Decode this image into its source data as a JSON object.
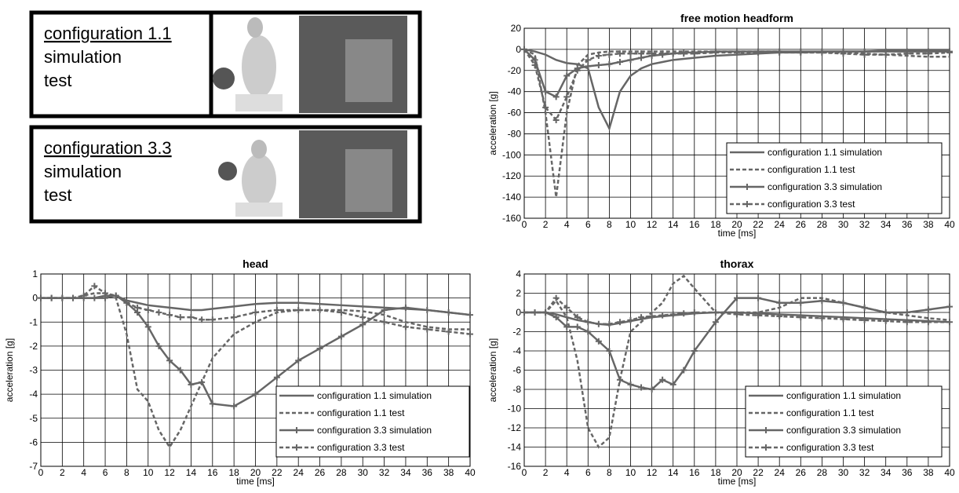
{
  "panels": [
    {
      "title": "configuration 1.1",
      "lines": [
        "simulation",
        "test"
      ]
    },
    {
      "title": "configuration 3.3",
      "lines": [
        "simulation",
        "test"
      ]
    }
  ],
  "chart_data": [
    {
      "type": "line",
      "title": "free motion headform",
      "x_label": "time [ms]",
      "y_label": "acceleration [g]",
      "x": [
        0,
        1,
        2,
        3,
        4,
        5,
        6,
        7,
        8,
        9,
        10,
        11,
        12,
        13,
        14,
        15,
        16,
        18,
        20,
        22,
        24,
        26,
        28,
        30,
        32,
        34,
        36,
        38,
        40
      ],
      "xlim": [
        0,
        40
      ],
      "xticks": [
        0,
        2,
        4,
        6,
        8,
        10,
        12,
        14,
        16,
        18,
        20,
        22,
        24,
        26,
        28,
        30,
        32,
        34,
        36,
        38,
        40
      ],
      "ylim": [
        -160,
        20
      ],
      "yticks": [
        -160,
        -140,
        -120,
        -100,
        -80,
        -60,
        -40,
        -20,
        0,
        20
      ],
      "grid": true,
      "legend": "lower right",
      "series": [
        {
          "name": "configuration 1.1 simulation",
          "color": "#666666",
          "linestyle": "solid",
          "marker": "none",
          "values": [
            0,
            -2,
            -5,
            -10,
            -13,
            -14,
            -18,
            -55,
            -75,
            -40,
            -25,
            -18,
            -14,
            -12,
            -10,
            -9,
            -8,
            -6,
            -5,
            -4,
            -3,
            -3,
            -2,
            -2,
            -2,
            -1,
            -1,
            -1,
            -1
          ]
        },
        {
          "name": "configuration 1.1 test",
          "color": "#666666",
          "linestyle": "dashed",
          "marker": "none",
          "values": [
            0,
            -5,
            -60,
            -140,
            -60,
            -15,
            -5,
            -3,
            -2,
            -2,
            -2,
            -2,
            -2,
            -2,
            -2,
            -2,
            -2,
            -2,
            -2,
            -2,
            -2,
            -3,
            -3,
            -3,
            -4,
            -5,
            -6,
            -7,
            -7
          ]
        },
        {
          "name": "configuration 3.3 simulation",
          "color": "#666666",
          "linestyle": "solid",
          "marker": "+",
          "values": [
            0,
            -10,
            -40,
            -45,
            -25,
            -18,
            -16,
            -15,
            -14,
            -12,
            -10,
            -8,
            -6,
            -5,
            -4,
            -3,
            -3,
            -2,
            -2,
            -2,
            -2,
            -2,
            -2,
            -2,
            -2,
            -2,
            -2,
            -2,
            -2
          ]
        },
        {
          "name": "configuration 3.3 test",
          "color": "#666666",
          "linestyle": "dashed",
          "marker": "+",
          "values": [
            0,
            -15,
            -55,
            -67,
            -45,
            -20,
            -10,
            -6,
            -5,
            -4,
            -4,
            -4,
            -4,
            -4,
            -4,
            -4,
            -4,
            -3,
            -3,
            -3,
            -3,
            -3,
            -3,
            -4,
            -5,
            -5,
            -4,
            -4,
            -3
          ]
        }
      ]
    },
    {
      "type": "line",
      "title": "head",
      "x_label": "time [ms]",
      "y_label": "acceleration [g]",
      "x": [
        0,
        1,
        2,
        3,
        4,
        5,
        6,
        7,
        8,
        9,
        10,
        11,
        12,
        13,
        14,
        15,
        16,
        18,
        20,
        22,
        24,
        26,
        28,
        30,
        32,
        34,
        36,
        38,
        40
      ],
      "xlim": [
        0,
        40
      ],
      "xticks": [
        0,
        2,
        4,
        6,
        8,
        10,
        12,
        14,
        16,
        18,
        20,
        22,
        24,
        26,
        28,
        30,
        32,
        34,
        36,
        38,
        40
      ],
      "ylim": [
        -7,
        1
      ],
      "yticks": [
        -7,
        -6,
        -5,
        -4,
        -3,
        -2,
        -1,
        0,
        1
      ],
      "grid": true,
      "legend": "lower right",
      "series": [
        {
          "name": "configuration 1.1 simulation",
          "color": "#666666",
          "linestyle": "solid",
          "marker": "none",
          "values": [
            0,
            0,
            0,
            0,
            0,
            0,
            0.1,
            0.1,
            -0.1,
            -0.2,
            -0.3,
            -0.35,
            -0.4,
            -0.45,
            -0.5,
            -0.5,
            -0.45,
            -0.35,
            -0.25,
            -0.2,
            -0.2,
            -0.25,
            -0.3,
            -0.35,
            -0.4,
            -0.45,
            -0.5,
            -0.6,
            -0.7
          ]
        },
        {
          "name": "configuration 1.1 test",
          "color": "#666666",
          "linestyle": "dashed",
          "marker": "none",
          "values": [
            0,
            0,
            0,
            0,
            0.1,
            0.2,
            0.2,
            0,
            -1.5,
            -3.8,
            -4.3,
            -5.5,
            -6.2,
            -5.5,
            -4.5,
            -3.5,
            -2.5,
            -1.5,
            -1,
            -0.6,
            -0.5,
            -0.5,
            -0.5,
            -0.55,
            -0.7,
            -1,
            -1.2,
            -1.3,
            -1.3
          ]
        },
        {
          "name": "configuration 3.3 simulation",
          "color": "#666666",
          "linestyle": "solid",
          "marker": "+",
          "values": [
            0,
            0,
            0,
            0,
            0,
            0,
            0,
            0.1,
            -0.2,
            -0.6,
            -1.2,
            -2,
            -2.6,
            -3,
            -3.6,
            -3.5,
            -4.4,
            -4.5,
            -4,
            -3.3,
            -2.6,
            -2.1,
            -1.6,
            -1.1,
            -0.5,
            -0.4,
            -0.5,
            -0.6,
            -0.7
          ]
        },
        {
          "name": "configuration 3.3 test",
          "color": "#666666",
          "linestyle": "dashed",
          "marker": "+",
          "values": [
            0,
            0,
            0,
            0,
            0.1,
            0.5,
            0.2,
            0.1,
            -0.2,
            -0.4,
            -0.5,
            -0.6,
            -0.7,
            -0.8,
            -0.8,
            -0.9,
            -0.9,
            -0.8,
            -0.6,
            -0.5,
            -0.5,
            -0.5,
            -0.6,
            -0.8,
            -1,
            -1.2,
            -1.3,
            -1.4,
            -1.5
          ]
        }
      ]
    },
    {
      "type": "line",
      "title": "thorax",
      "x_label": "time [ms]",
      "y_label": "acceleration [g]",
      "x": [
        0,
        1,
        2,
        3,
        4,
        5,
        6,
        7,
        8,
        9,
        10,
        11,
        12,
        13,
        14,
        15,
        16,
        18,
        20,
        22,
        24,
        26,
        28,
        30,
        32,
        34,
        36,
        38,
        40
      ],
      "xlim": [
        0,
        40
      ],
      "xticks": [
        0,
        2,
        4,
        6,
        8,
        10,
        12,
        14,
        16,
        18,
        20,
        22,
        24,
        26,
        28,
        30,
        32,
        34,
        36,
        38,
        40
      ],
      "ylim": [
        -16,
        4
      ],
      "yticks": [
        -16,
        -14,
        -12,
        -10,
        -8,
        -6,
        -4,
        -2,
        0,
        2,
        4
      ],
      "grid": true,
      "legend": "lower right",
      "series": [
        {
          "name": "configuration 1.1 simulation",
          "color": "#666666",
          "linestyle": "solid",
          "marker": "none",
          "values": [
            0,
            0,
            0,
            -0.2,
            -0.5,
            -0.8,
            -1,
            -1.2,
            -1.3,
            -1.1,
            -0.9,
            -0.7,
            -0.5,
            -0.4,
            -0.3,
            -0.2,
            -0.1,
            0,
            0,
            -0.1,
            -0.2,
            -0.3,
            -0.4,
            -0.5,
            -0.6,
            -0.7,
            -0.8,
            -0.9,
            -1
          ]
        },
        {
          "name": "configuration 1.1 test",
          "color": "#666666",
          "linestyle": "dashed",
          "marker": "none",
          "values": [
            0,
            0,
            0,
            1.2,
            -0.5,
            -5,
            -12,
            -14,
            -13,
            -7,
            -2,
            -1,
            0,
            1,
            3,
            3.8,
            2.5,
            0,
            0,
            0,
            0.5,
            1.5,
            1.5,
            1,
            0.5,
            0,
            -0.3,
            -0.6,
            -0.8
          ]
        },
        {
          "name": "configuration 3.3 simulation",
          "color": "#666666",
          "linestyle": "solid",
          "marker": "+",
          "values": [
            0,
            0,
            0,
            -0.5,
            -1.5,
            -1.5,
            -2,
            -3,
            -4,
            -7,
            -7.5,
            -7.8,
            -8,
            -7,
            -7.5,
            -6,
            -4,
            -1,
            1.5,
            1.5,
            1,
            1,
            1.2,
            1,
            0.5,
            0,
            0,
            0.3,
            0.6
          ]
        },
        {
          "name": "configuration 3.3 test",
          "color": "#666666",
          "linestyle": "dashed",
          "marker": "+",
          "values": [
            0,
            0,
            0,
            1.5,
            0.5,
            -0.5,
            -1,
            -1.2,
            -1.2,
            -1,
            -0.8,
            -0.5,
            -0.4,
            -0.3,
            -0.2,
            -0.1,
            0,
            0,
            -0.2,
            -0.3,
            -0.4,
            -0.5,
            -0.6,
            -0.7,
            -0.8,
            -0.9,
            -1,
            -1,
            -1
          ]
        }
      ]
    }
  ]
}
